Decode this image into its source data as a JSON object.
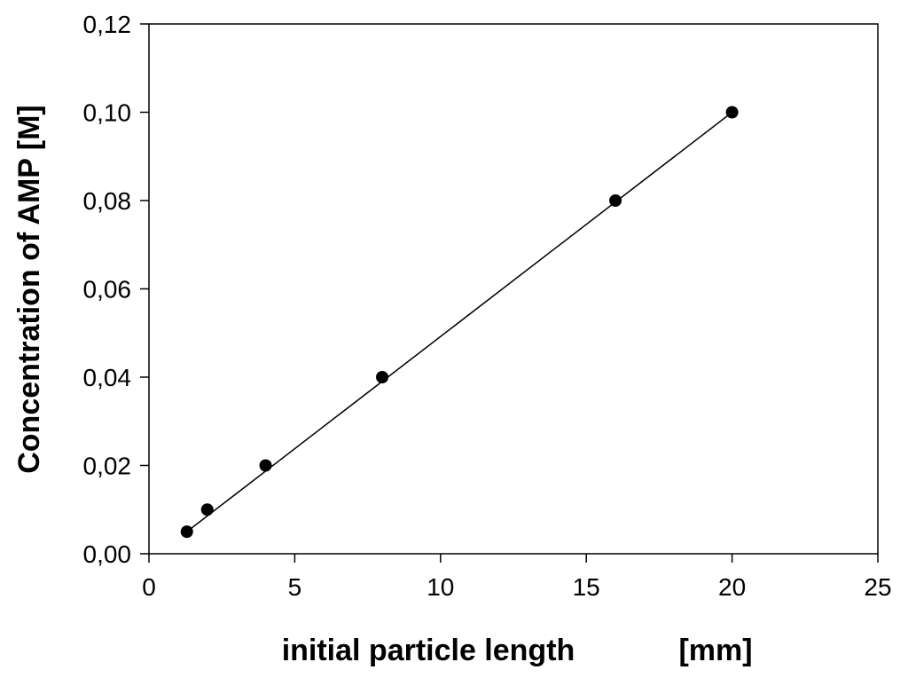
{
  "chart_data": {
    "type": "scatter",
    "title": "",
    "xlabel": "initial particle length",
    "xlabel_unit": "[mm]",
    "ylabel": "Concentration of AMP [M]",
    "xlim": [
      0,
      25
    ],
    "ylim": [
      0,
      0.12
    ],
    "x_ticks": [
      0,
      5,
      10,
      15,
      20,
      25
    ],
    "x_tick_labels": [
      "0",
      "5",
      "10",
      "15",
      "20",
      "25"
    ],
    "y_ticks": [
      0,
      0.02,
      0.04,
      0.06,
      0.08,
      0.1,
      0.12
    ],
    "y_tick_labels": [
      "0,00",
      "0,02",
      "0,04",
      "0,06",
      "0,08",
      "0,10",
      "0,12"
    ],
    "grid": false,
    "legend": "none",
    "series": [
      {
        "x": [
          1.3,
          2,
          4,
          8,
          16,
          20
        ],
        "y": [
          0.005,
          0.01,
          0.02,
          0.04,
          0.08,
          0.1
        ],
        "marker": "filled-circle",
        "color": "#000000"
      }
    ],
    "fit_line": {
      "x": [
        1.3,
        20
      ],
      "y": [
        0.005,
        0.1
      ],
      "color": "#000000"
    }
  }
}
